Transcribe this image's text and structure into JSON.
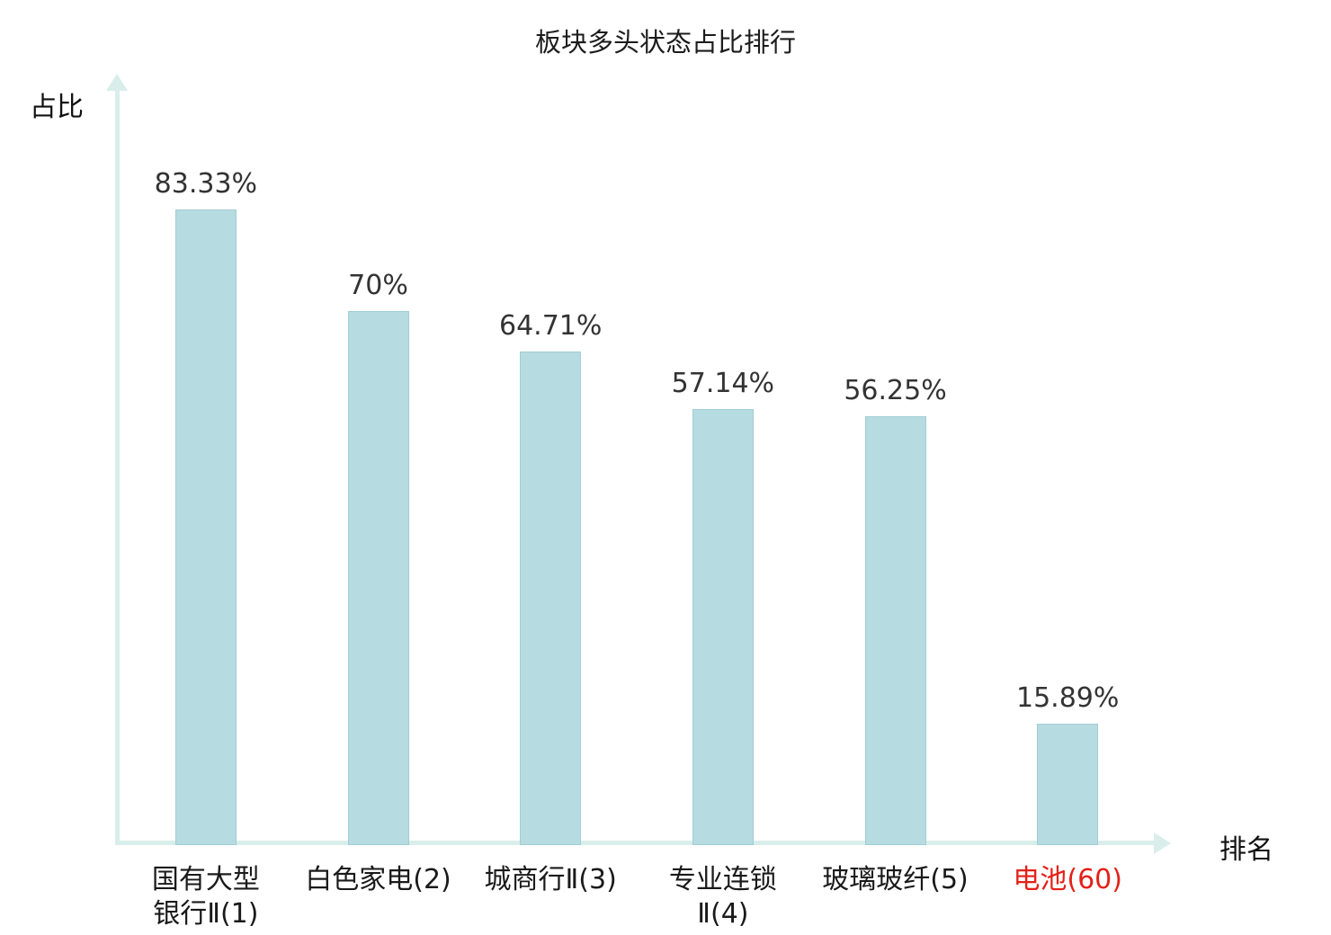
{
  "chart": {
    "title": "板块多头状态占比排行",
    "y_axis_label": "占比",
    "x_axis_label": "排名"
  },
  "chart_data": {
    "type": "bar",
    "title": "板块多头状态占比排行",
    "xlabel": "排名",
    "ylabel": "占比",
    "ylim": [
      0,
      100
    ],
    "grid": false,
    "legend": false,
    "categories": [
      "国有大型\n银行Ⅱ(1)",
      "白色家电(2)",
      "城商行Ⅱ(3)",
      "专业连锁\nⅡ(4)",
      "玻璃玻纤(5)",
      "电池(60)"
    ],
    "values": [
      83.33,
      70,
      64.71,
      57.14,
      56.25,
      15.89
    ],
    "value_labels": [
      "83.33%",
      "70%",
      "64.71%",
      "57.14%",
      "56.25%",
      "15.89%"
    ],
    "bar_color": "#b6dbe0",
    "bar_border_color": "#a2cdd4",
    "axis_color": "#d9eeea",
    "highlight_index": 5,
    "highlight_color": "#e32119",
    "text_color": "#1a1a1a"
  }
}
